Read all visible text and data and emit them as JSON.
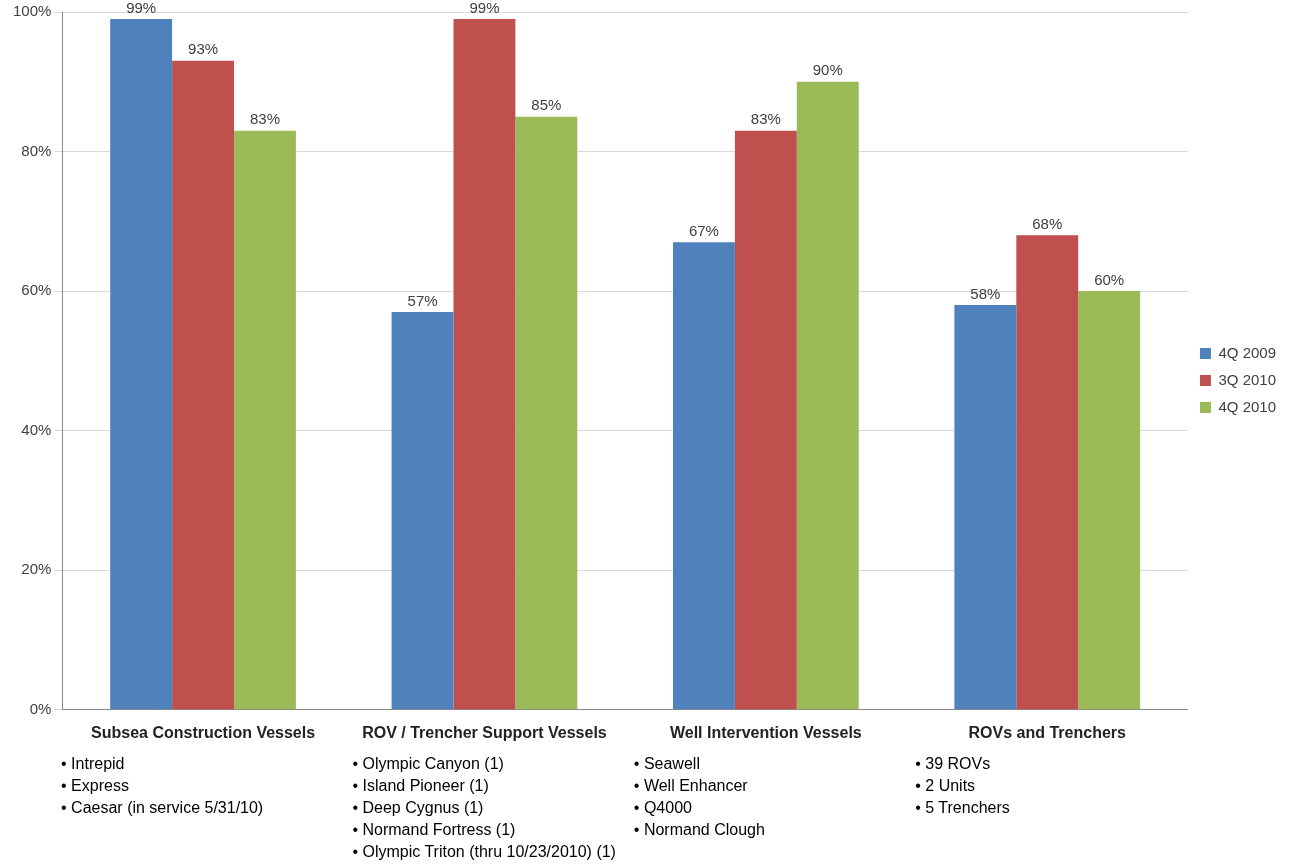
{
  "chart_data": {
    "type": "bar",
    "categories": [
      "Subsea Construction Vessels",
      "ROV / Trencher Support Vessels",
      "Well Intervention Vessels",
      "ROVs and Trenchers"
    ],
    "series": [
      {
        "name": "4Q 2009",
        "color": "#4f81bd",
        "values": [
          99,
          57,
          67,
          58
        ],
        "value_labels": [
          "99%",
          "57%",
          "67%",
          "58%"
        ]
      },
      {
        "name": "3Q 2010",
        "color": "#c0504d",
        "values": [
          93,
          99,
          83,
          68
        ],
        "value_labels": [
          "93%",
          "99%",
          "83%",
          "68%"
        ]
      },
      {
        "name": "4Q 2010",
        "color": "#9bbb59",
        "values": [
          83,
          85,
          90,
          60
        ],
        "value_labels": [
          "83%",
          "85%",
          "90%",
          "60%"
        ]
      }
    ],
    "ylim": [
      0,
      100
    ],
    "yticks": [
      {
        "value": 0,
        "label": "0%"
      },
      {
        "value": 20,
        "label": "20%"
      },
      {
        "value": 40,
        "label": "40%"
      },
      {
        "value": 60,
        "label": "60%"
      },
      {
        "value": 80,
        "label": "80%"
      },
      {
        "value": 100,
        "label": "100%"
      }
    ],
    "grid": "y",
    "legend": "right",
    "annotations": [
      "• Intrepid\n• Express\n• Caesar (in service 5/31/10)",
      "• Olympic Canyon (1)\n• Island Pioneer (1)\n• Deep Cygnus (1)\n• Normand Fortress (1)\n• Olympic Triton (thru 10/23/2010) (1)",
      "• Seawell\n• Well Enhancer\n• Q4000\n• Normand Clough",
      "• 39 ROVs\n• 2 Units\n• 5 Trenchers"
    ]
  }
}
